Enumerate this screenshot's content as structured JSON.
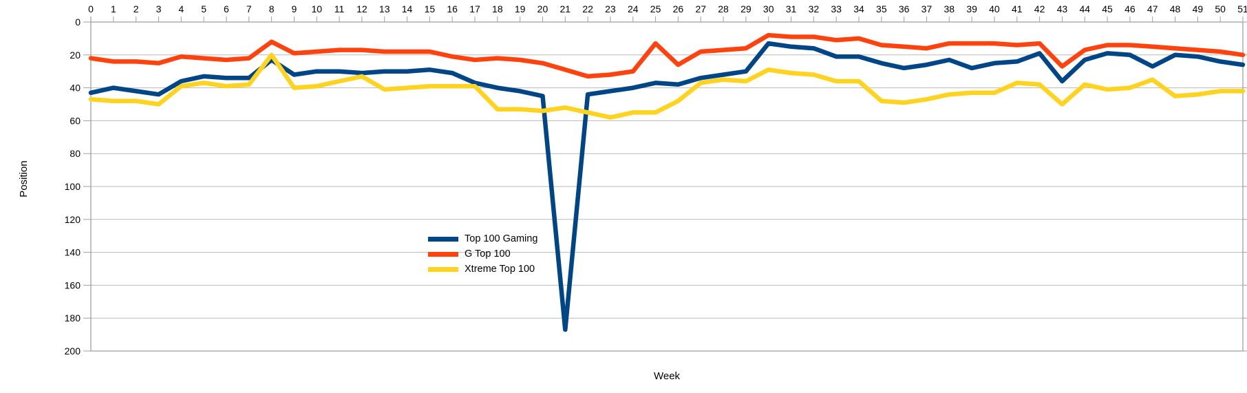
{
  "chart_data": {
    "type": "line",
    "title": "",
    "xlabel": "Week",
    "ylabel": "Position",
    "x": [
      0,
      1,
      2,
      3,
      4,
      5,
      6,
      7,
      8,
      9,
      10,
      11,
      12,
      13,
      14,
      15,
      16,
      17,
      18,
      19,
      20,
      21,
      22,
      23,
      24,
      25,
      26,
      27,
      28,
      29,
      30,
      31,
      32,
      33,
      34,
      35,
      36,
      37,
      38,
      39,
      40,
      41,
      42,
      43,
      44,
      45,
      46,
      47,
      48,
      49,
      50,
      51
    ],
    "xlim": [
      0,
      51
    ],
    "ylim": [
      0,
      200
    ],
    "y_axis_direction": "inverted (0 at top, 200 at bottom)",
    "y_tick_step": 20,
    "grid": true,
    "legend_position": "center-of-plot",
    "series": [
      {
        "name": "Top 100 Gaming",
        "color": "#004586",
        "values": [
          43,
          40,
          42,
          44,
          36,
          33,
          34,
          34,
          23,
          32,
          30,
          30,
          31,
          30,
          30,
          29,
          31,
          37,
          40,
          42,
          45,
          187,
          44,
          42,
          40,
          37,
          38,
          34,
          32,
          30,
          13,
          15,
          16,
          21,
          21,
          25,
          28,
          26,
          23,
          28,
          25,
          24,
          19,
          36,
          23,
          19,
          20,
          27,
          20,
          21,
          24,
          26
        ]
      },
      {
        "name": "G Top 100",
        "color": "#FF420E",
        "values": [
          22,
          24,
          24,
          25,
          21,
          22,
          23,
          22,
          12,
          19,
          18,
          17,
          17,
          18,
          18,
          18,
          21,
          23,
          22,
          23,
          25,
          29,
          33,
          32,
          30,
          13,
          26,
          18,
          17,
          16,
          8,
          9,
          9,
          11,
          10,
          14,
          15,
          16,
          13,
          13,
          13,
          14,
          13,
          27,
          17,
          14,
          14,
          15,
          16,
          17,
          18,
          20
        ]
      },
      {
        "name": "Xtreme Top 100",
        "color": "#FFD320",
        "values": [
          47,
          48,
          48,
          50,
          39,
          37,
          39,
          38,
          20,
          40,
          39,
          36,
          33,
          41,
          40,
          39,
          39,
          39,
          53,
          53,
          54,
          52,
          55,
          58,
          55,
          55,
          48,
          37,
          35,
          36,
          29,
          31,
          32,
          36,
          36,
          48,
          49,
          47,
          44,
          43,
          43,
          37,
          38,
          50,
          38,
          41,
          40,
          35,
          45,
          44,
          42,
          42
        ]
      }
    ]
  },
  "style": {
    "grid_color": "#b9b9b9",
    "axis_color": "#9e9e9e",
    "text_color": "#000000",
    "background": "#ffffff",
    "line_width": 6.5
  }
}
